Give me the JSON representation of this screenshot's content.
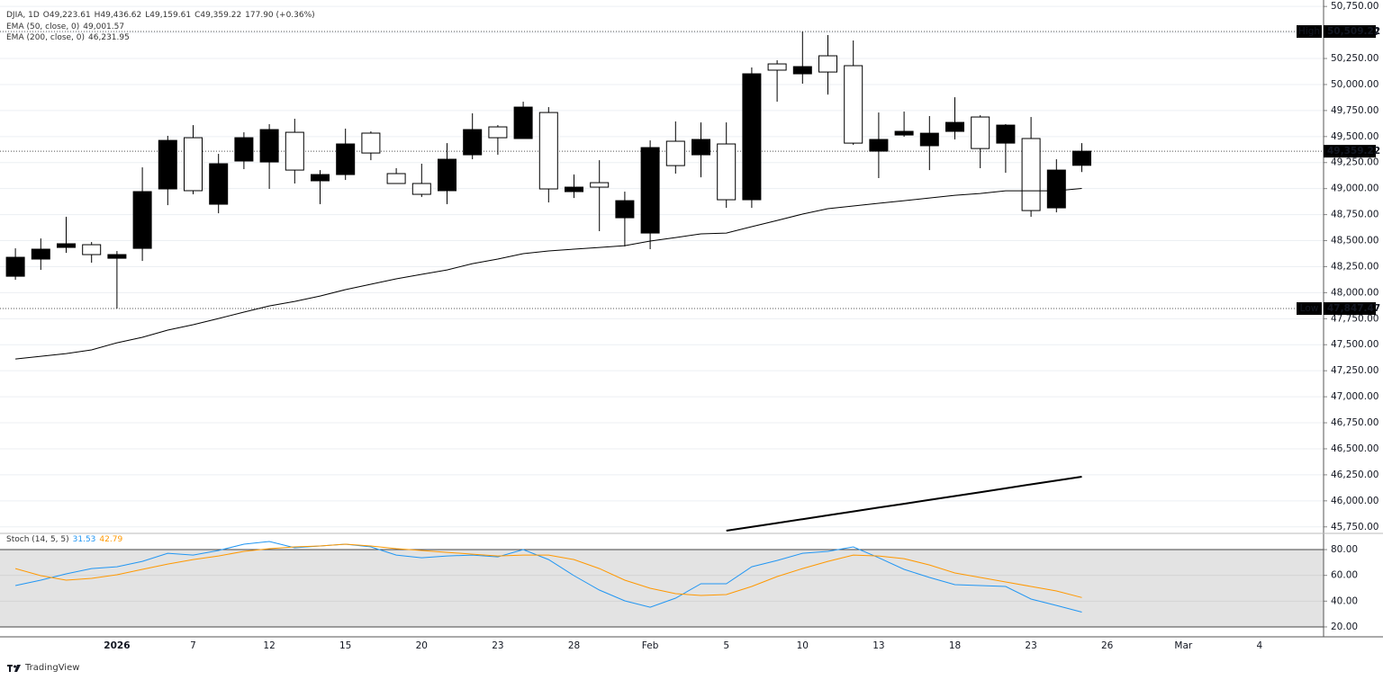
{
  "header": {
    "symbol": "DJIA, 1D",
    "ohlc_labels": [
      "O49,223.61",
      "H49,436.62",
      "L49,159.61",
      "C49,359.22"
    ],
    "change": "177.90 (+0.36%)"
  },
  "footer": {
    "brand": "TradingView"
  },
  "chart_data": [
    {
      "type": "candlestick",
      "categories": [
        null,
        null,
        null,
        null,
        "2026",
        null,
        null,
        "7",
        null,
        null,
        "12",
        null,
        null,
        "15",
        null,
        null,
        "20",
        null,
        null,
        "23",
        null,
        null,
        "28",
        null,
        null,
        "Feb",
        null,
        null,
        "5",
        null,
        null,
        "10",
        null,
        null,
        "13",
        null,
        null,
        "18",
        null,
        null,
        "23",
        null,
        null,
        "26",
        null,
        null,
        "Mar",
        null,
        null,
        "4",
        null,
        null
      ],
      "open": [
        48158,
        48323,
        48435,
        48461,
        48331,
        48426,
        48997,
        49489,
        48850,
        49265,
        49256,
        49541,
        49075,
        49135,
        49533,
        49144,
        49049,
        48980,
        49325,
        49593,
        49481,
        49731,
        48971,
        49057,
        48720,
        48573,
        49455,
        49325,
        49429,
        48893,
        50198,
        50103,
        50276,
        50181,
        49360,
        49515,
        49412,
        49550,
        49688,
        49437,
        49481,
        48815,
        49223.61,
        null,
        null,
        null,
        null,
        null,
        null,
        null,
        null,
        null
      ],
      "high": [
        48426,
        48521,
        48729,
        48487,
        48400,
        49204,
        49507,
        49610,
        49334,
        49541,
        49619,
        49671,
        49178,
        49576,
        49550,
        49196,
        49239,
        49437,
        49723,
        49610,
        49835,
        49783,
        49135,
        49273,
        48971,
        49463,
        49645,
        49636,
        49636,
        50164,
        50233,
        50509.22,
        50475,
        50423,
        49731,
        49740,
        49697,
        49878,
        49705,
        49620,
        49688,
        49282,
        49436.62,
        null,
        null,
        null,
        null,
        null,
        null,
        null,
        null,
        null
      ],
      "low": [
        48124,
        48219,
        48383,
        48288,
        47847.47,
        48305,
        48841,
        48945,
        48763,
        49187,
        48997,
        49049,
        48850,
        49083,
        49273,
        49049,
        48919,
        48850,
        49282,
        49325,
        49481,
        48867,
        48910,
        48591,
        48444,
        48418,
        49144,
        49109,
        48815,
        48815,
        49835,
        50008,
        49904,
        49420,
        49101,
        49498,
        49178,
        49472,
        49196,
        49152,
        48729,
        48772,
        49159.61,
        null,
        null,
        null,
        null,
        null,
        null,
        null,
        null,
        null
      ],
      "close": [
        48340,
        48418,
        48470,
        48366,
        48366,
        48971,
        49463,
        48980,
        49239,
        49489,
        49567,
        49178,
        49135,
        49429,
        49342,
        49049,
        48945,
        49282,
        49567,
        49489,
        49783,
        48997,
        49014,
        49014,
        48884,
        49394,
        49221,
        49472,
        48893,
        50103,
        50138,
        50172,
        50120,
        49437,
        49472,
        49550,
        49532,
        49636,
        49385,
        49610,
        48789,
        49178,
        49359.22,
        null,
        null,
        null,
        null,
        null,
        null,
        null,
        null,
        null
      ],
      "up_color": "#000000",
      "down_color": "#ffffff",
      "lines": [
        {
          "name": "EMA (50, close, 0)",
          "last_label": "49,001.57",
          "color": "#000000",
          "width": 1,
          "values": [
            47363,
            47389,
            47415,
            47450,
            47519,
            47571,
            47640,
            47692,
            47752,
            47813,
            47873,
            47916,
            47968,
            48029,
            48081,
            48133,
            48176,
            48219,
            48279,
            48323,
            48375,
            48401,
            48418,
            48435,
            48452,
            48496,
            48530,
            48565,
            48573,
            48634,
            48694,
            48755,
            48807,
            48833,
            48859,
            48884,
            48910,
            48936,
            48953,
            48979,
            48979,
            48979,
            49001.57,
            null,
            null,
            null,
            null,
            null,
            null,
            null,
            null,
            null
          ]
        },
        {
          "name": "EMA (200, close, 0)",
          "last_label": "46,231.95",
          "color": "#000000",
          "width": 2,
          "values": [
            null,
            null,
            null,
            null,
            null,
            null,
            null,
            null,
            null,
            null,
            null,
            null,
            null,
            null,
            null,
            null,
            null,
            null,
            null,
            null,
            null,
            null,
            null,
            null,
            null,
            null,
            null,
            null,
            45713,
            45750,
            45787,
            45824,
            45861,
            45898,
            45935,
            45972,
            46009,
            46046,
            46083,
            46120,
            46158,
            46195,
            46231.95,
            null,
            null,
            null,
            null,
            null,
            null,
            null,
            null,
            null
          ]
        }
      ],
      "price_tags": [
        {
          "name": "High",
          "value": 50509.22,
          "label": "50,509.22"
        },
        {
          "name": "Low",
          "value": 47847.47,
          "label": "47,847.47"
        },
        {
          "value": 49359.22,
          "label": "49,359.22"
        }
      ],
      "ylim": [
        45696,
        50812
      ],
      "yticks": [
        {
          "value": 45750,
          "label": "45,750.00"
        },
        {
          "value": 46000,
          "label": "46,000.00"
        },
        {
          "value": 46250,
          "label": "46,250.00"
        },
        {
          "value": 46500,
          "label": "46,500.00"
        },
        {
          "value": 46750,
          "label": "46,750.00"
        },
        {
          "value": 47000,
          "label": "47,000.00"
        },
        {
          "value": 47250,
          "label": "47,250.00"
        },
        {
          "value": 47500,
          "label": "47,500.00"
        },
        {
          "value": 47750,
          "label": "47,750.00"
        },
        {
          "value": 48000,
          "label": "48,000.00"
        },
        {
          "value": 48250,
          "label": "48,250.00"
        },
        {
          "value": 48500,
          "label": "48,500.00"
        },
        {
          "value": 48750,
          "label": "48,750.00"
        },
        {
          "value": 49000,
          "label": "49,000.00"
        },
        {
          "value": 49250,
          "label": "49,250.00"
        },
        {
          "value": 49500,
          "label": "49,500.00"
        },
        {
          "value": 49750,
          "label": "49,750.00"
        },
        {
          "value": 50000,
          "label": "50,000.00"
        },
        {
          "value": 50250,
          "label": "50,250.00"
        },
        {
          "value": 50500,
          "label": "50,500.00"
        },
        {
          "value": 50750,
          "label": "50,750.00"
        }
      ],
      "grid": true
    },
    {
      "type": "line",
      "title": "Stoch (14, 5, 5)",
      "series": [
        {
          "color": "#2196f3",
          "value_label": "31.53",
          "values": [
            52.1,
            56.3,
            61.2,
            65.3,
            66.7,
            70.9,
            77.2,
            75.8,
            79.3,
            84.2,
            86.3,
            81.4,
            82.8,
            84.2,
            82.1,
            75.8,
            73.7,
            75.1,
            75.8,
            74.4,
            80,
            72.3,
            59.8,
            48.6,
            40.2,
            35.3,
            42.3,
            53.5,
            53.5,
            66.7,
            71.6,
            77.2,
            78.6,
            82.1,
            73.7,
            64.7,
            58.4,
            52.8,
            52.1,
            51.4,
            41.6,
            36.7,
            31.53,
            null,
            null,
            null,
            null,
            null,
            null,
            null,
            null,
            null
          ]
        },
        {
          "color": "#ff9800",
          "value_label": "42.79",
          "values": [
            65.3,
            59.8,
            56.3,
            57.7,
            60.5,
            64.7,
            68.8,
            72.3,
            75.1,
            78.6,
            80.7,
            82.1,
            82.8,
            84.2,
            82.8,
            80.7,
            79.3,
            77.9,
            76.5,
            75.1,
            75.8,
            75.8,
            72.3,
            65.3,
            56.3,
            50.0,
            45.8,
            44.4,
            45.1,
            51.4,
            59.1,
            65.3,
            70.9,
            75.8,
            75.1,
            73.0,
            68.1,
            61.9,
            58.4,
            54.9,
            51.4,
            47.9,
            42.79,
            null,
            null,
            null,
            null,
            null,
            null,
            null,
            null,
            null
          ]
        }
      ],
      "band": [
        20,
        80
      ],
      "ylim": [
        12.3,
        91.9
      ],
      "yticks": [
        {
          "value": 20,
          "label": "20.00"
        },
        {
          "value": 40,
          "label": "40.00"
        },
        {
          "value": 60,
          "label": "60.00"
        },
        {
          "value": 80,
          "label": "80.00"
        }
      ],
      "grid": true
    }
  ]
}
